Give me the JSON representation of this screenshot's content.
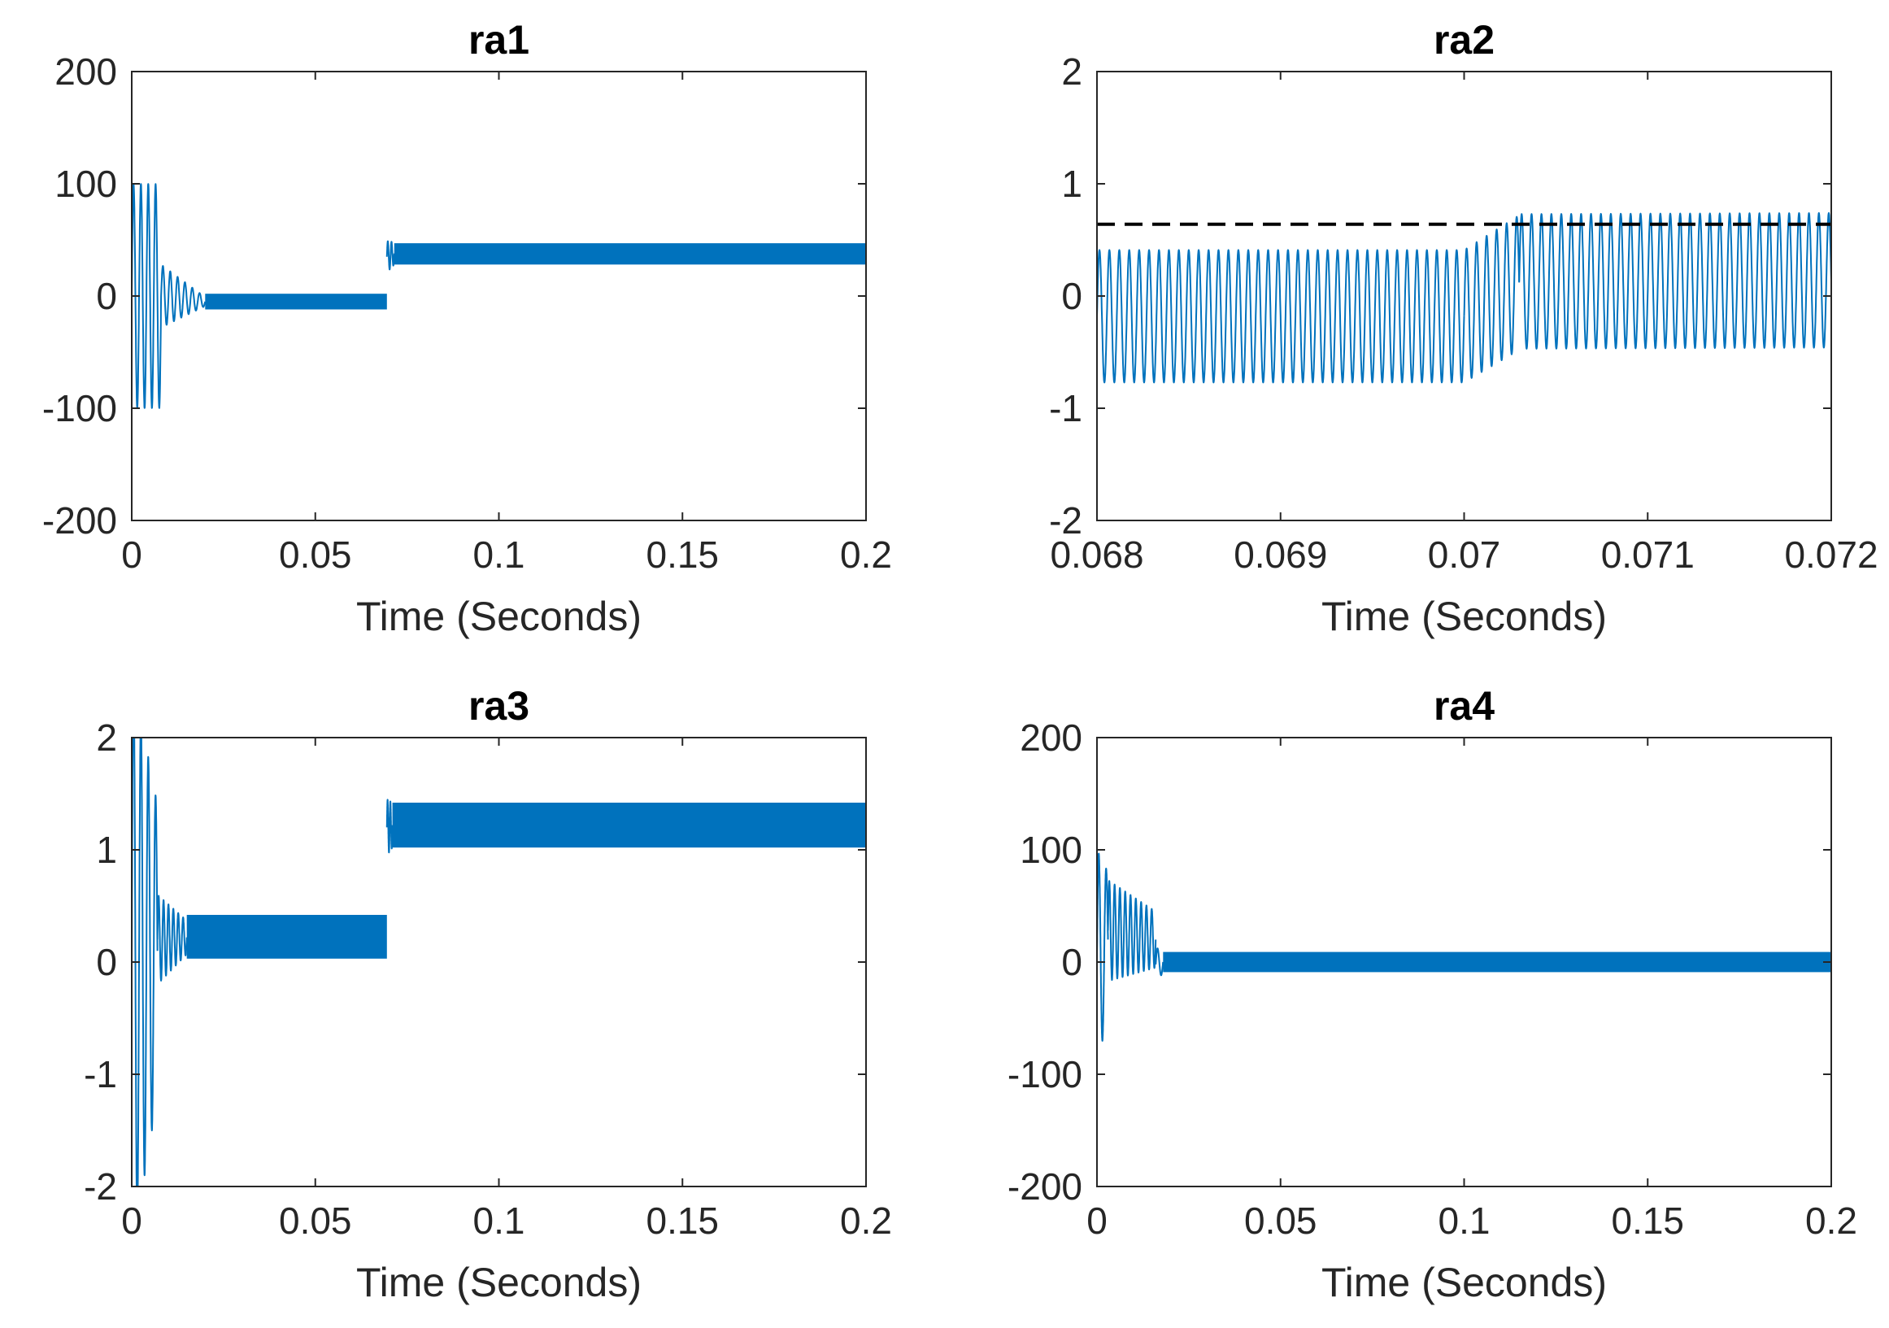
{
  "figure": {
    "layout": "2x2 subplots"
  },
  "colors": {
    "series": "#0072BD",
    "reference": "#000000",
    "axes": "#262626",
    "background": "#ffffff"
  },
  "chart_data": [
    {
      "id": "ra1",
      "type": "line",
      "title": "ra1",
      "xlabel": "Time (Seconds)",
      "ylabel": "",
      "xlim": [
        0,
        0.2
      ],
      "ylim": [
        -200,
        200
      ],
      "xticks": [
        0,
        0.05,
        0.1,
        0.15,
        0.2
      ],
      "xtick_labels": [
        "0",
        "0.05",
        "0.1",
        "0.15",
        "0.2"
      ],
      "yticks": [
        -200,
        -100,
        0,
        100,
        200
      ],
      "ytick_labels": [
        "-200",
        "-100",
        "0",
        "100",
        "200"
      ],
      "series": [
        {
          "name": "ra1",
          "style": "signal",
          "segments": [
            {
              "kind": "osc",
              "x0": 0,
              "x1": 0.008,
              "cycles": 4,
              "a0": 100,
              "a1": 100,
              "c0": 0,
              "c1": 0
            },
            {
              "kind": "osc",
              "x0": 0.008,
              "x1": 0.02,
              "cycles": 6,
              "a0": 28,
              "a1": 4,
              "c0": 0,
              "c1": -5
            },
            {
              "kind": "band",
              "x0": 0.02,
              "x1": 0.0695,
              "lo": -12,
              "hi": 2
            },
            {
              "kind": "osc",
              "x0": 0.0695,
              "x1": 0.0715,
              "cycles": 2,
              "a0": 14,
              "a1": 10,
              "c0": 35,
              "c1": 38
            },
            {
              "kind": "band",
              "x0": 0.0715,
              "x1": 0.2,
              "lo": 28,
              "hi": 47
            }
          ]
        }
      ]
    },
    {
      "id": "ra2",
      "type": "line",
      "title": "ra2",
      "xlabel": "Time (Seconds)",
      "ylabel": "",
      "xlim": [
        0.068,
        0.072
      ],
      "ylim": [
        -2,
        2
      ],
      "xticks": [
        0.068,
        0.069,
        0.07,
        0.071,
        0.072
      ],
      "xtick_labels": [
        "0.068",
        "0.069",
        "0.07",
        "0.071",
        "0.072"
      ],
      "yticks": [
        -2,
        -1,
        0,
        1,
        2
      ],
      "ytick_labels": [
        "-2",
        "-1",
        "0",
        "1",
        "2"
      ],
      "series": [
        {
          "name": "ra2",
          "style": "signal",
          "segments": [
            {
              "kind": "osc",
              "x0": 0.068,
              "x1": 0.07,
              "cycles": 37,
              "a0": 0.59,
              "a1": 0.59,
              "c0": -0.18,
              "c1": -0.18
            },
            {
              "kind": "osc",
              "x0": 0.07,
              "x1": 0.0703,
              "cycles": 5.5,
              "a0": 0.59,
              "a1": 0.6,
              "c0": -0.18,
              "c1": 0.12
            },
            {
              "kind": "osc",
              "x0": 0.0703,
              "x1": 0.072,
              "cycles": 31.5,
              "a0": 0.6,
              "a1": 0.6,
              "c0": 0.13,
              "c1": 0.14
            }
          ]
        },
        {
          "name": "reference",
          "style": "dashed",
          "points": [
            [
              0.068,
              0.64
            ],
            [
              0.072,
              0.64
            ]
          ]
        }
      ]
    },
    {
      "id": "ra3",
      "type": "line",
      "title": "ra3",
      "xlabel": "Time (Seconds)",
      "ylabel": "",
      "xlim": [
        0,
        0.2
      ],
      "ylim": [
        -2,
        2
      ],
      "xticks": [
        0,
        0.05,
        0.1,
        0.15,
        0.2
      ],
      "xtick_labels": [
        "0",
        "0.05",
        "0.1",
        "0.15",
        "0.2"
      ],
      "yticks": [
        -2,
        -1,
        0,
        1,
        2
      ],
      "ytick_labels": [
        "-2",
        "-1",
        "0",
        "1",
        "2"
      ],
      "series": [
        {
          "name": "ra3",
          "style": "signal",
          "segments": [
            {
              "kind": "osc",
              "x0": 0,
              "x1": 0.007,
              "cycles": 3.5,
              "a0": 2.6,
              "a1": 1.3,
              "c0": 0,
              "c1": 0.1
            },
            {
              "kind": "osc",
              "x0": 0.007,
              "x1": 0.015,
              "cycles": 6,
              "a0": 0.4,
              "a1": 0.15,
              "c0": 0.2,
              "c1": 0.22
            },
            {
              "kind": "band",
              "x0": 0.015,
              "x1": 0.0695,
              "lo": 0.03,
              "hi": 0.42
            },
            {
              "kind": "osc",
              "x0": 0.0695,
              "x1": 0.071,
              "cycles": 2,
              "a0": 0.25,
              "a1": 0.2,
              "c0": 1.2,
              "c1": 1.22
            },
            {
              "kind": "band",
              "x0": 0.071,
              "x1": 0.2,
              "lo": 1.02,
              "hi": 1.42
            }
          ]
        }
      ]
    },
    {
      "id": "ra4",
      "type": "line",
      "title": "ra4",
      "xlabel": "Time (Seconds)",
      "ylabel": "",
      "xlim": [
        0,
        0.2
      ],
      "ylim": [
        -200,
        200
      ],
      "xticks": [
        0,
        0.05,
        0.1,
        0.15,
        0.2
      ],
      "xtick_labels": [
        "0",
        "0.05",
        "0.1",
        "0.15",
        "0.2"
      ],
      "yticks": [
        -200,
        -100,
        0,
        100,
        200
      ],
      "ytick_labels": [
        "-200",
        "-100",
        "0",
        "100",
        "200"
      ],
      "series": [
        {
          "name": "ra4",
          "style": "signal",
          "segments": [
            {
              "kind": "osc",
              "x0": 0,
              "x1": 0.003,
              "cycles": 1.5,
              "a0": 100,
              "a1": 60,
              "c0": 0,
              "c1": 20
            },
            {
              "kind": "osc",
              "x0": 0.003,
              "x1": 0.016,
              "cycles": 9,
              "a0": 45,
              "a1": 25,
              "c0": 28,
              "c1": 20
            },
            {
              "kind": "osc",
              "x0": 0.016,
              "x1": 0.018,
              "cycles": 1,
              "a0": 15,
              "a1": 10,
              "c0": -2,
              "c1": 0
            },
            {
              "kind": "band",
              "x0": 0.018,
              "x1": 0.2,
              "lo": -9,
              "hi": 9
            }
          ]
        }
      ]
    }
  ]
}
